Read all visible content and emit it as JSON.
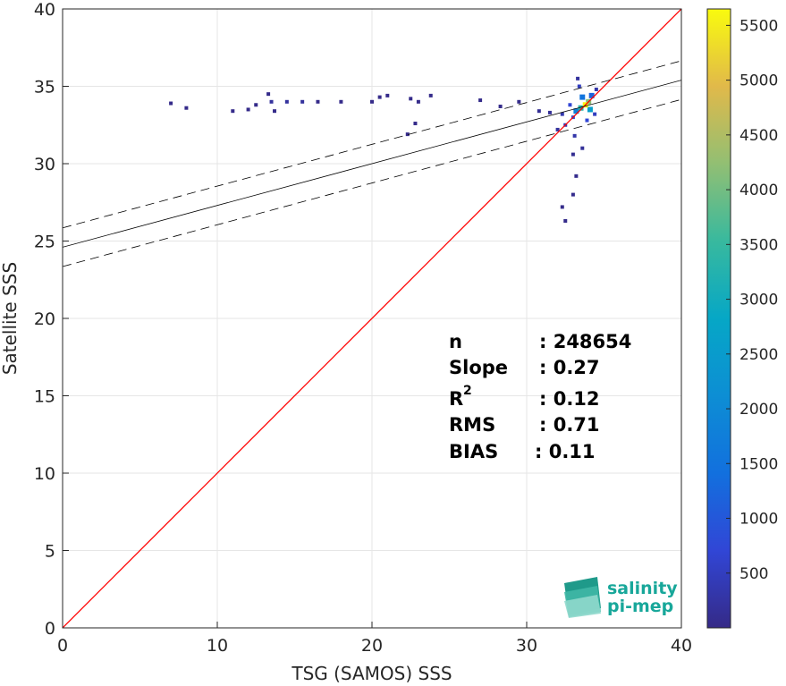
{
  "chart_data": {
    "type": "heatmap",
    "xlabel": "TSG (SAMOS) SSS",
    "ylabel": "Satellite SSS",
    "xlim": [
      0,
      40
    ],
    "ylim": [
      0,
      40
    ],
    "xticks": [
      0,
      10,
      20,
      30,
      40
    ],
    "yticks": [
      0,
      5,
      10,
      15,
      20,
      25,
      30,
      35,
      40
    ],
    "grid": true,
    "colorbar": {
      "range": [
        0,
        5650
      ],
      "ticks": [
        500,
        1000,
        1500,
        2000,
        2500,
        3000,
        3500,
        4000,
        4500,
        5000,
        5500
      ],
      "colormap": "parula"
    },
    "identity_line": {
      "color": "#ff0000",
      "from": [
        0,
        0
      ],
      "to": [
        40,
        40
      ]
    },
    "regression": {
      "slope": 0.27,
      "intercept": 24.6,
      "band": 1.25,
      "color": "#000000"
    },
    "density_points": [
      {
        "x": 33.8,
        "y": 33.8,
        "c": 5600
      },
      {
        "x": 34.0,
        "y": 34.0,
        "c": 4200
      },
      {
        "x": 33.5,
        "y": 33.6,
        "c": 3300
      },
      {
        "x": 34.1,
        "y": 33.5,
        "c": 2600
      },
      {
        "x": 33.2,
        "y": 33.4,
        "c": 1800
      },
      {
        "x": 33.6,
        "y": 34.3,
        "c": 1500
      },
      {
        "x": 34.2,
        "y": 34.4,
        "c": 1200
      },
      {
        "x": 33.0,
        "y": 33.0,
        "c": 900
      },
      {
        "x": 32.8,
        "y": 33.8,
        "c": 700
      },
      {
        "x": 33.9,
        "y": 32.8,
        "c": 700
      },
      {
        "x": 33.4,
        "y": 35.0,
        "c": 500
      },
      {
        "x": 34.4,
        "y": 33.2,
        "c": 500
      },
      {
        "x": 32.5,
        "y": 32.5,
        "c": 400
      },
      {
        "x": 32.3,
        "y": 33.2,
        "c": 350
      },
      {
        "x": 33.1,
        "y": 31.8,
        "c": 300
      },
      {
        "x": 34.5,
        "y": 34.8,
        "c": 300
      },
      {
        "x": 33.3,
        "y": 35.5,
        "c": 200
      },
      {
        "x": 32.0,
        "y": 32.2,
        "c": 200
      },
      {
        "x": 31.5,
        "y": 33.3,
        "c": 150
      },
      {
        "x": 30.8,
        "y": 33.4,
        "c": 120
      },
      {
        "x": 33.6,
        "y": 31.0,
        "c": 150
      },
      {
        "x": 33.0,
        "y": 30.6,
        "c": 100
      },
      {
        "x": 33.2,
        "y": 29.2,
        "c": 50
      },
      {
        "x": 33.0,
        "y": 28.0,
        "c": 50
      },
      {
        "x": 32.5,
        "y": 26.3,
        "c": 40
      },
      {
        "x": 32.3,
        "y": 27.2,
        "c": 40
      },
      {
        "x": 29.5,
        "y": 34.0,
        "c": 40
      },
      {
        "x": 28.3,
        "y": 33.7,
        "c": 40
      },
      {
        "x": 27.0,
        "y": 34.1,
        "c": 30
      },
      {
        "x": 22.5,
        "y": 34.2,
        "c": 30
      },
      {
        "x": 20.0,
        "y": 34.0,
        "c": 30
      },
      {
        "x": 20.5,
        "y": 34.3,
        "c": 30
      },
      {
        "x": 21.0,
        "y": 34.4,
        "c": 30
      },
      {
        "x": 23.0,
        "y": 34.0,
        "c": 30
      },
      {
        "x": 23.8,
        "y": 34.4,
        "c": 30
      },
      {
        "x": 22.8,
        "y": 32.6,
        "c": 30
      },
      {
        "x": 22.3,
        "y": 31.9,
        "c": 30
      },
      {
        "x": 13.5,
        "y": 34.0,
        "c": 200
      },
      {
        "x": 14.5,
        "y": 34.0,
        "c": 200
      },
      {
        "x": 15.5,
        "y": 34.0,
        "c": 200
      },
      {
        "x": 13.3,
        "y": 34.5,
        "c": 30
      },
      {
        "x": 12.0,
        "y": 33.5,
        "c": 30
      },
      {
        "x": 12.5,
        "y": 33.8,
        "c": 30
      },
      {
        "x": 11.0,
        "y": 33.4,
        "c": 30
      },
      {
        "x": 8.0,
        "y": 33.6,
        "c": 30
      },
      {
        "x": 7.0,
        "y": 33.9,
        "c": 30
      },
      {
        "x": 13.7,
        "y": 33.4,
        "c": 30
      },
      {
        "x": 16.5,
        "y": 34.0,
        "c": 30
      },
      {
        "x": 18.0,
        "y": 34.0,
        "c": 30
      }
    ]
  },
  "stats": [
    {
      "label": "n",
      "value": ": 248654"
    },
    {
      "label": "Slope",
      "value": ": 0.27"
    },
    {
      "label": "R",
      "value": ": 0.12"
    },
    {
      "label": "RMS",
      "value": ": 0.71"
    },
    {
      "label": "BIAS",
      "value": ": 0.11"
    }
  ],
  "logo": {
    "line1": "salinity",
    "line2": "pi-mep"
  }
}
